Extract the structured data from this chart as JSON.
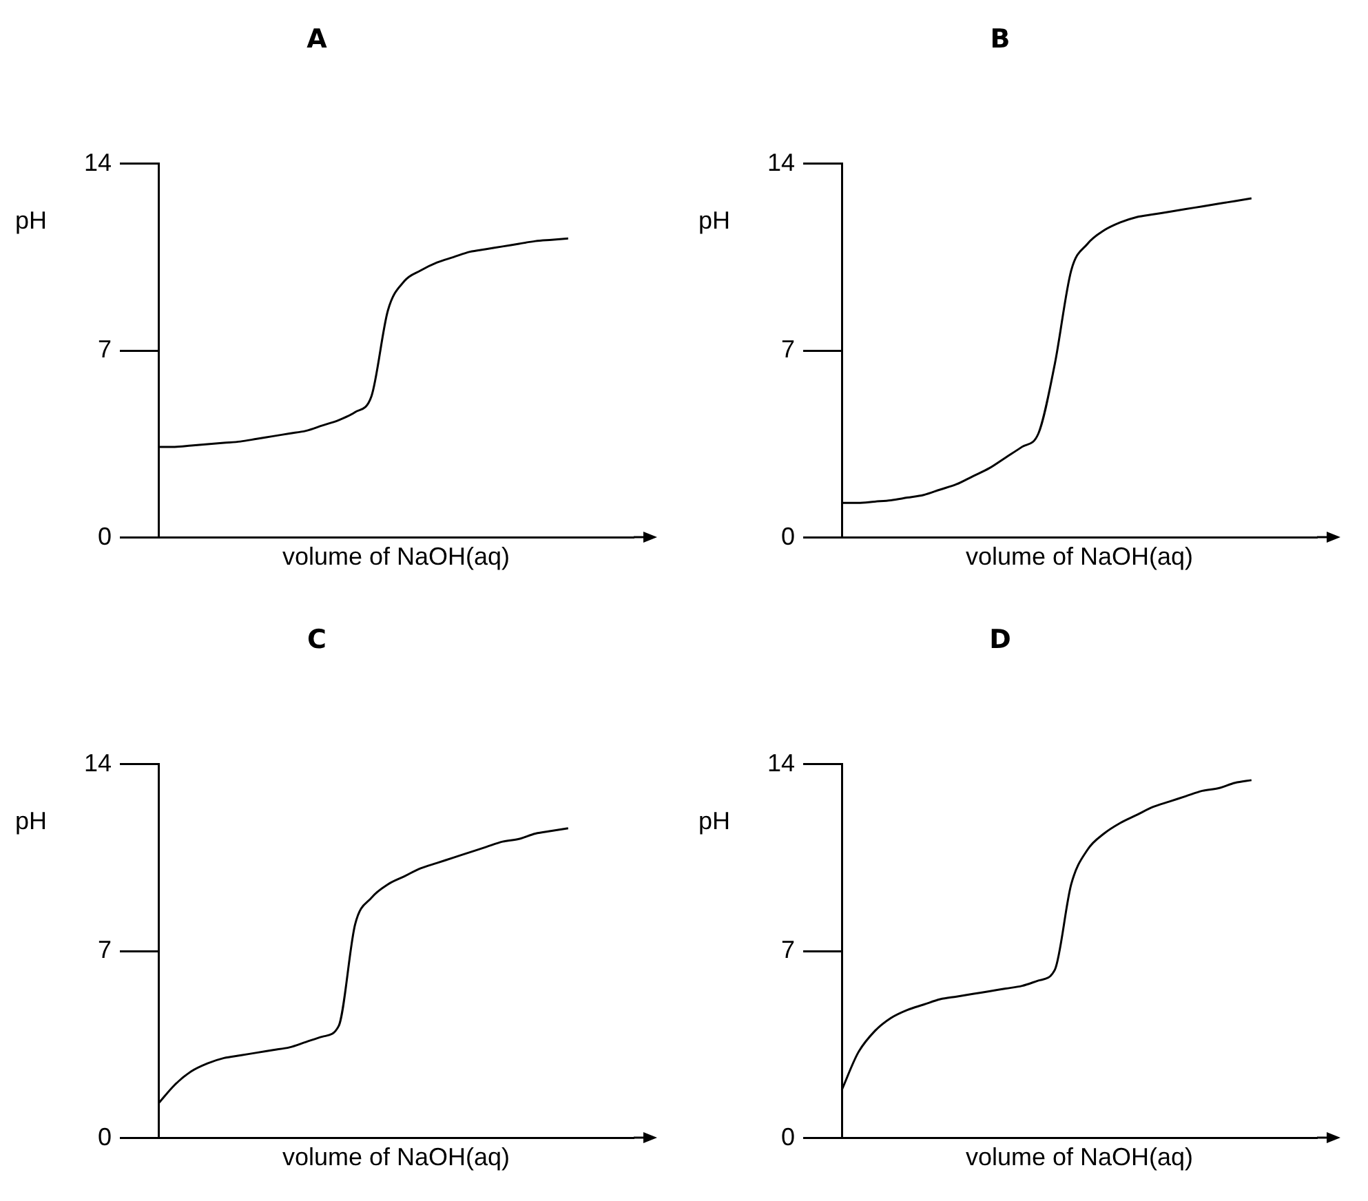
{
  "chart_data": [
    {
      "type": "line",
      "title": "A",
      "xlabel": "volume of NaOH(aq)",
      "ylabel": "pH",
      "color": "#000000",
      "ylim": [
        0,
        14
      ],
      "yticks": [
        0,
        7,
        14
      ],
      "grid": false,
      "legend": false,
      "marker": "none",
      "tick_labels": "y",
      "categories": [
        null,
        null,
        null,
        null,
        null,
        null,
        null,
        null,
        null,
        null,
        null,
        null,
        null,
        null,
        null,
        null,
        null,
        null,
        null,
        null,
        null,
        null,
        null,
        null,
        null,
        null,
        null,
        null,
        null,
        null
      ],
      "values": [
        3.4,
        3.4,
        3.45,
        3.5,
        3.55,
        3.6,
        3.7,
        3.8,
        3.9,
        4.0,
        4.2,
        4.4,
        4.7,
        5.3,
        8.5,
        9.6,
        10.0,
        10.3,
        10.5,
        10.7,
        10.8,
        10.9,
        11.0,
        11.1,
        11.15,
        11.2,
        null,
        null,
        null,
        null
      ]
    },
    {
      "type": "line",
      "title": "B",
      "xlabel": "volume of NaOH(aq)",
      "ylabel": "pH",
      "color": "#000000",
      "ylim": [
        0,
        14
      ],
      "yticks": [
        0,
        7,
        14
      ],
      "grid": false,
      "legend": false,
      "marker": "none",
      "tick_labels": "y",
      "categories": [
        null,
        null,
        null,
        null,
        null,
        null,
        null,
        null,
        null,
        null,
        null,
        null,
        null,
        null,
        null,
        null,
        null,
        null,
        null,
        null,
        null,
        null,
        null,
        null,
        null,
        null,
        null,
        null,
        null,
        null
      ],
      "values": [
        1.3,
        1.3,
        1.35,
        1.4,
        1.5,
        1.6,
        1.8,
        2.0,
        2.3,
        2.6,
        3.0,
        3.4,
        3.9,
        6.5,
        10.0,
        11.0,
        11.5,
        11.8,
        12.0,
        12.1,
        12.2,
        12.3,
        12.4,
        12.5,
        12.6,
        12.7,
        null,
        null,
        null,
        null
      ]
    },
    {
      "type": "line",
      "title": "C",
      "xlabel": "volume of NaOH(aq)",
      "ylabel": "pH",
      "color": "#000000",
      "ylim": [
        0,
        14
      ],
      "yticks": [
        0,
        7,
        14
      ],
      "grid": false,
      "legend": false,
      "marker": "none",
      "tick_labels": "y",
      "categories": [
        null,
        null,
        null,
        null,
        null,
        null,
        null,
        null,
        null,
        null,
        null,
        null,
        null,
        null,
        null,
        null,
        null,
        null,
        null,
        null,
        null,
        null,
        null,
        null,
        null,
        null,
        null,
        null,
        null,
        null
      ],
      "values": [
        1.3,
        2.0,
        2.5,
        2.8,
        3.0,
        3.1,
        3.2,
        3.3,
        3.4,
        3.6,
        3.8,
        4.2,
        8.0,
        9.0,
        9.5,
        9.8,
        10.1,
        10.3,
        10.5,
        10.7,
        10.9,
        11.1,
        11.2,
        11.4,
        11.5,
        11.6,
        null,
        null,
        null,
        null
      ]
    },
    {
      "type": "line",
      "title": "D",
      "xlabel": "volume of NaOH(aq)",
      "ylabel": "pH",
      "color": "#000000",
      "ylim": [
        0,
        14
      ],
      "yticks": [
        0,
        7,
        14
      ],
      "grid": false,
      "legend": false,
      "marker": "none",
      "tick_labels": "y",
      "categories": [
        null,
        null,
        null,
        null,
        null,
        null,
        null,
        null,
        null,
        null,
        null,
        null,
        null,
        null,
        null,
        null,
        null,
        null,
        null,
        null,
        null,
        null,
        null,
        null,
        null,
        null,
        null,
        null,
        null,
        null
      ],
      "values": [
        1.8,
        3.2,
        4.0,
        4.5,
        4.8,
        5.0,
        5.2,
        5.3,
        5.4,
        5.5,
        5.6,
        5.7,
        5.9,
        6.3,
        9.5,
        10.8,
        11.4,
        11.8,
        12.1,
        12.4,
        12.6,
        12.8,
        13.0,
        13.1,
        13.3,
        13.4,
        null,
        null,
        null,
        null
      ]
    }
  ]
}
